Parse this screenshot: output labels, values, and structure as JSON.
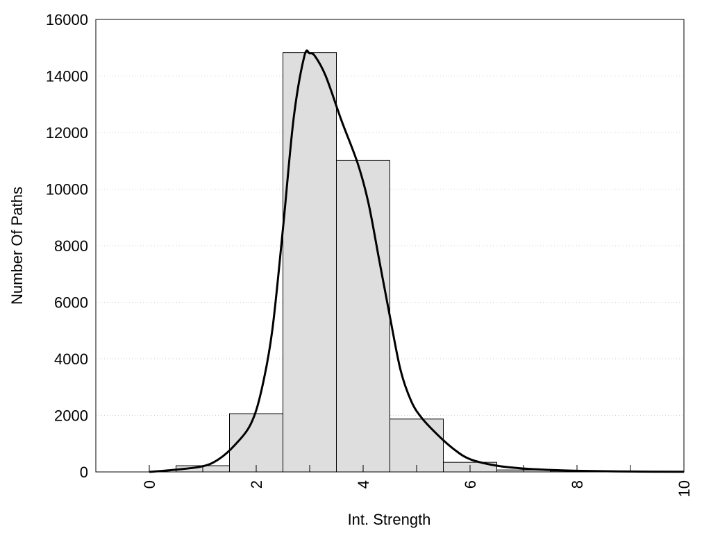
{
  "chart_data": {
    "type": "bar",
    "xlabel": "Int. Strength",
    "ylabel": "Number Of Paths",
    "xlim": [
      -1,
      10
    ],
    "ylim": [
      0,
      16000
    ],
    "x_ticks": [
      "0",
      "2",
      "4",
      "6",
      "8",
      "10"
    ],
    "y_ticks": [
      "0",
      "2000",
      "4000",
      "6000",
      "8000",
      "10000",
      "12000",
      "14000",
      "16000"
    ],
    "grid": true,
    "bar_width": 1,
    "bars": [
      {
        "x": 0,
        "value": 0
      },
      {
        "x": 1,
        "value": 220
      },
      {
        "x": 2,
        "value": 2060
      },
      {
        "x": 3,
        "value": 14830
      },
      {
        "x": 4,
        "value": 11010
      },
      {
        "x": 5,
        "value": 1870
      },
      {
        "x": 6,
        "value": 340
      },
      {
        "x": 7,
        "value": 70
      },
      {
        "x": 8,
        "value": 30
      },
      {
        "x": 9,
        "value": 10
      },
      {
        "x": 10,
        "value": 0
      }
    ],
    "curve": {
      "x": [
        0,
        0.5,
        1,
        1.3,
        1.6,
        1.9,
        2.1,
        2.3,
        2.5,
        2.7,
        2.9,
        3.0,
        3.1,
        3.3,
        3.6,
        3.9,
        4.1,
        4.3,
        4.5,
        4.7,
        4.9,
        5.1,
        5.4,
        5.7,
        6.0,
        6.5,
        7,
        7.5,
        8,
        9,
        10
      ],
      "y": [
        0,
        80,
        200,
        450,
        950,
        1700,
        2900,
        5000,
        8600,
        12500,
        14700,
        14800,
        14700,
        14000,
        12400,
        10900,
        9500,
        7500,
        5500,
        3600,
        2500,
        1900,
        1300,
        800,
        450,
        220,
        120,
        70,
        40,
        15,
        5
      ]
    },
    "colors": {
      "bar_fill": "#dedede",
      "bar_stroke": "#000000",
      "line": "#000000",
      "grid": "#cccccc"
    }
  }
}
